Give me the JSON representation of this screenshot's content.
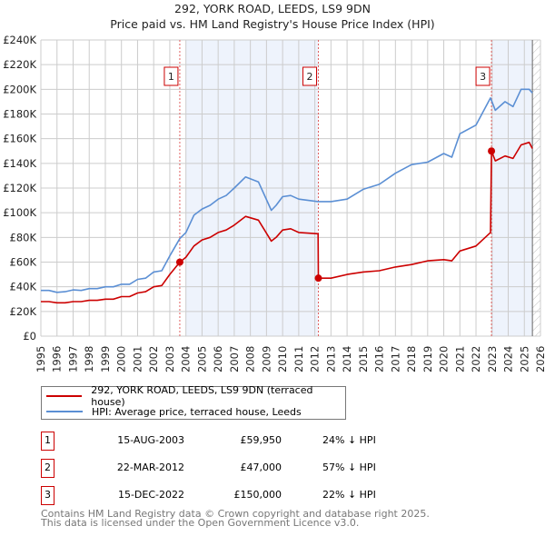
{
  "title": "292, YORK ROAD, LEEDS, LS9 9DN",
  "subtitle": "Price paid vs. HM Land Registry's House Price Index (HPI)",
  "colors": {
    "property": "#cc0000",
    "hpi": "#5b8fd4",
    "band": "#eef3fc",
    "grid": "#cccccc"
  },
  "chart_data": {
    "type": "line",
    "xlim": [
      1995,
      2026
    ],
    "ylim": [
      0,
      240000
    ],
    "yticks": [
      0,
      20000,
      40000,
      60000,
      80000,
      100000,
      120000,
      140000,
      160000,
      180000,
      200000,
      220000,
      240000
    ],
    "ytick_labels": [
      "£0",
      "£20K",
      "£40K",
      "£60K",
      "£80K",
      "£100K",
      "£120K",
      "£140K",
      "£160K",
      "£180K",
      "£200K",
      "£220K",
      "£240K"
    ],
    "xticks": [
      1995,
      1996,
      1997,
      1998,
      1999,
      2000,
      2001,
      2002,
      2003,
      2004,
      2005,
      2006,
      2007,
      2008,
      2009,
      2010,
      2011,
      2012,
      2013,
      2014,
      2015,
      2016,
      2017,
      2018,
      2019,
      2020,
      2021,
      2022,
      2023,
      2024,
      2025,
      2026
    ],
    "grid": true,
    "shaded_ranges": [
      [
        2004,
        2012.2
      ],
      [
        2022.96,
        2025.5
      ]
    ],
    "forecast_hatch_from": 2025.5,
    "series": [
      {
        "name": "292, YORK ROAD, LEEDS, LS9 9DN (terraced house)",
        "x": [
          1995,
          1995.5,
          1996,
          1996.5,
          1997,
          1997.5,
          1998,
          1998.5,
          1999,
          1999.5,
          2000,
          2000.5,
          2001,
          2001.5,
          2002,
          2002.5,
          2003,
          2003.62,
          2004,
          2004.5,
          2005,
          2005.5,
          2006,
          2006.5,
          2007,
          2007.7,
          2008.5,
          2009.3,
          2009.6,
          2010,
          2010.5,
          2011,
          2012.2,
          2012.22,
          2013,
          2014,
          2015,
          2016,
          2017,
          2018,
          2019,
          2020,
          2020.5,
          2021,
          2022,
          2022.9,
          2022.96,
          2023.2,
          2023.8,
          2024.3,
          2024.8,
          2025.3,
          2025.5
        ],
        "values": [
          28000,
          28000,
          27000,
          27000,
          28000,
          28000,
          29000,
          29000,
          30000,
          30000,
          32000,
          32000,
          35000,
          36000,
          40000,
          41000,
          50000,
          59950,
          64000,
          73000,
          78000,
          80000,
          84000,
          86000,
          90000,
          97000,
          94000,
          77000,
          80000,
          86000,
          87000,
          84000,
          83000,
          47000,
          47000,
          50000,
          52000,
          53000,
          56000,
          58000,
          61000,
          62000,
          61000,
          69000,
          73000,
          84000,
          150000,
          142000,
          146000,
          144000,
          155000,
          157000,
          152000
        ]
      },
      {
        "name": "HPI: Average price, terraced house, Leeds",
        "x": [
          1995,
          1995.5,
          1996,
          1996.5,
          1997,
          1997.5,
          1998,
          1998.5,
          1999,
          1999.5,
          2000,
          2000.5,
          2001,
          2001.5,
          2002,
          2002.5,
          2003,
          2003.62,
          2004,
          2004.5,
          2005,
          2005.5,
          2006,
          2006.5,
          2007,
          2007.7,
          2008.5,
          2009.3,
          2009.6,
          2010,
          2010.5,
          2011,
          2012.2,
          2013,
          2014,
          2015,
          2016,
          2017,
          2018,
          2019,
          2020,
          2020.5,
          2021,
          2022,
          2022.9,
          2023.2,
          2023.8,
          2024.3,
          2024.8,
          2025.3,
          2025.5
        ],
        "values": [
          37000,
          37000,
          35500,
          36000,
          37500,
          37000,
          38500,
          38500,
          40000,
          40000,
          42000,
          42000,
          46000,
          47000,
          52000,
          53000,
          65000,
          79000,
          84000,
          98000,
          103000,
          106000,
          111000,
          114000,
          120000,
          129000,
          125000,
          102000,
          106000,
          113000,
          114000,
          111000,
          109000,
          109000,
          111000,
          119000,
          123000,
          132000,
          139000,
          141000,
          148000,
          145000,
          164000,
          171000,
          193000,
          183000,
          190000,
          186000,
          200000,
          200000,
          197000
        ]
      }
    ],
    "sales": [
      {
        "label": "1",
        "x": 2003.62,
        "value": 59950,
        "date": "15-AUG-2003",
        "price": "£59,950",
        "hpi_diff": "24% ↓ HPI"
      },
      {
        "label": "2",
        "x": 2012.22,
        "value": 47000,
        "date": "22-MAR-2012",
        "price": "£47,000",
        "hpi_diff": "57% ↓ HPI"
      },
      {
        "label": "3",
        "x": 2022.96,
        "value": 150000,
        "date": "15-DEC-2022",
        "price": "£150,000",
        "hpi_diff": "22% ↓ HPI"
      }
    ]
  },
  "legend": {
    "property": "292, YORK ROAD, LEEDS, LS9 9DN (terraced house)",
    "hpi": "HPI: Average price, terraced house, Leeds"
  },
  "footer": {
    "line1": "Contains HM Land Registry data © Crown copyright and database right 2025.",
    "line2": "This data is licensed under the Open Government Licence v3.0."
  }
}
